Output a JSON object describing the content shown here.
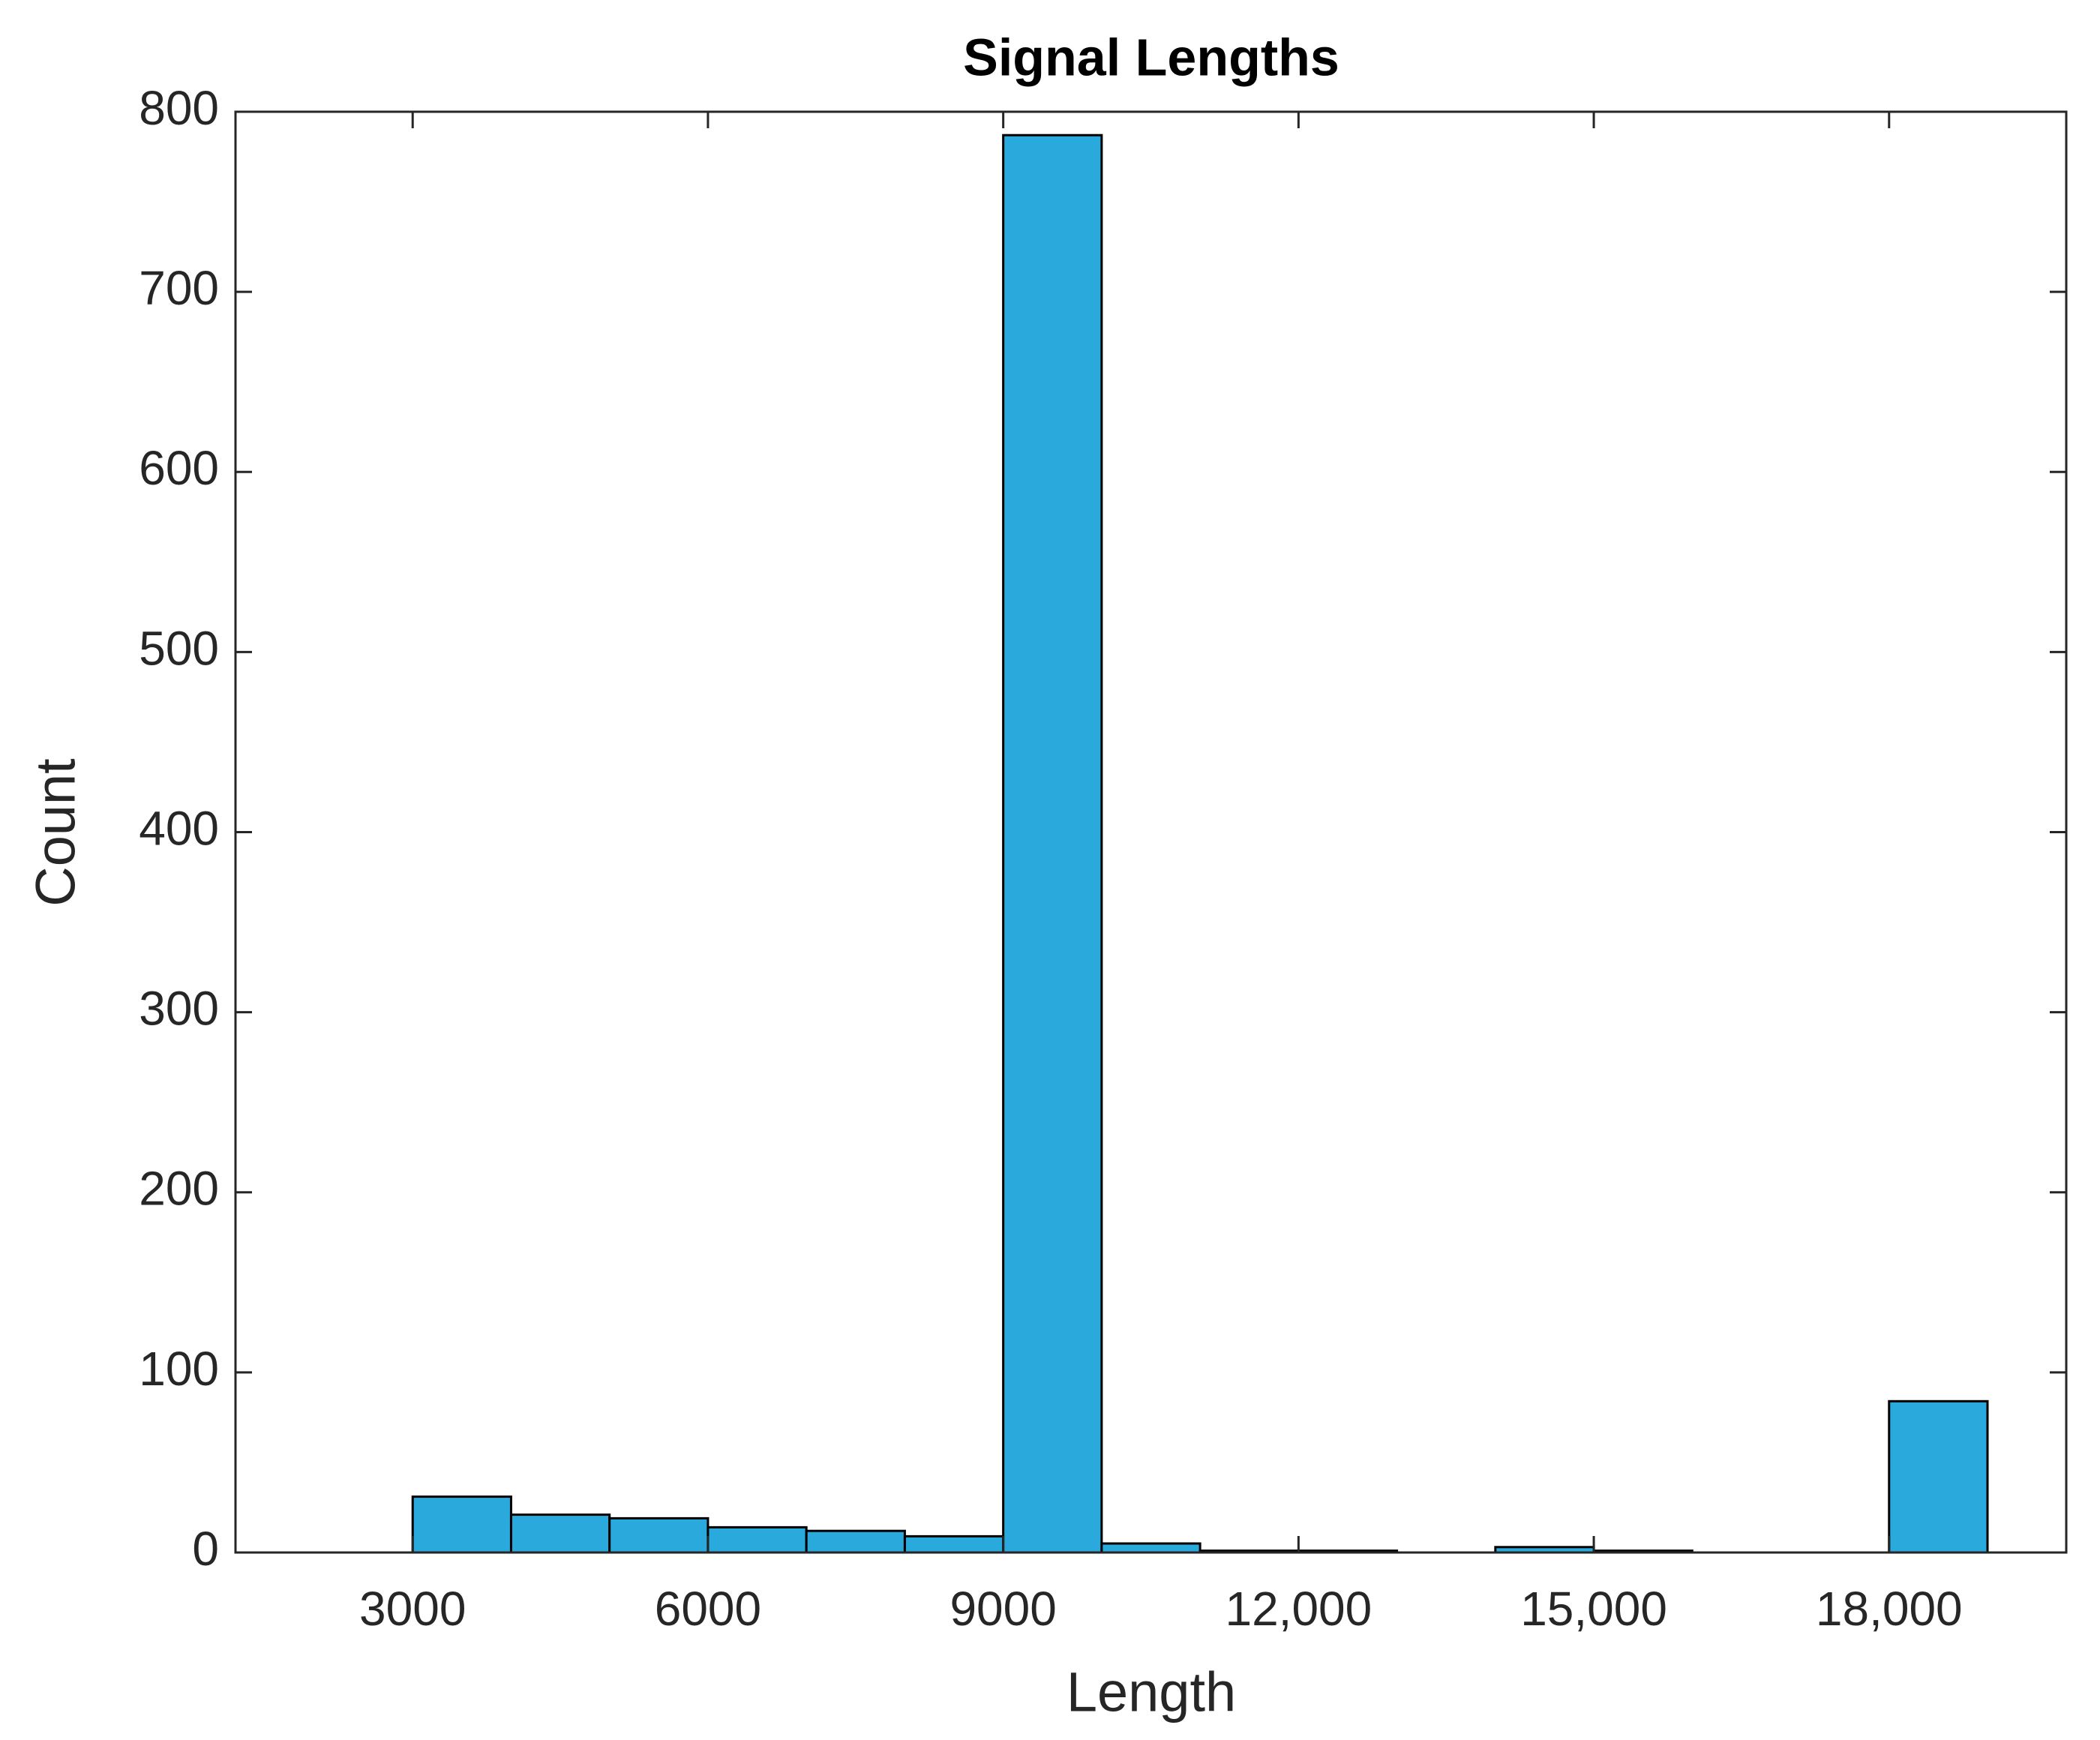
{
  "chart_data": {
    "type": "histogram",
    "title": "Signal Lengths",
    "xlabel": "Length",
    "ylabel": "Count",
    "bins": [
      3000,
      4000,
      5000,
      6000,
      7000,
      8000,
      9000,
      10000,
      11000,
      12000,
      13000,
      14000,
      15000,
      16000,
      17000,
      18000,
      19000
    ],
    "values": [
      31,
      21,
      19,
      14,
      12,
      9,
      787,
      5,
      1,
      1,
      0,
      3,
      1,
      0,
      0,
      84
    ],
    "color": "#29a9dc",
    "xlim": [
      1200,
      19800
    ],
    "xticks": [
      3000,
      6000,
      9000,
      {
        "value": 12000,
        "label": "12,000"
      },
      {
        "value": 15000,
        "label": "15,000"
      },
      {
        "value": 18000,
        "label": "18,000"
      }
    ],
    "ylim": [
      0,
      800
    ],
    "yticks": [
      0,
      100,
      200,
      300,
      400,
      500,
      600,
      700,
      800
    ],
    "grid": false
  }
}
